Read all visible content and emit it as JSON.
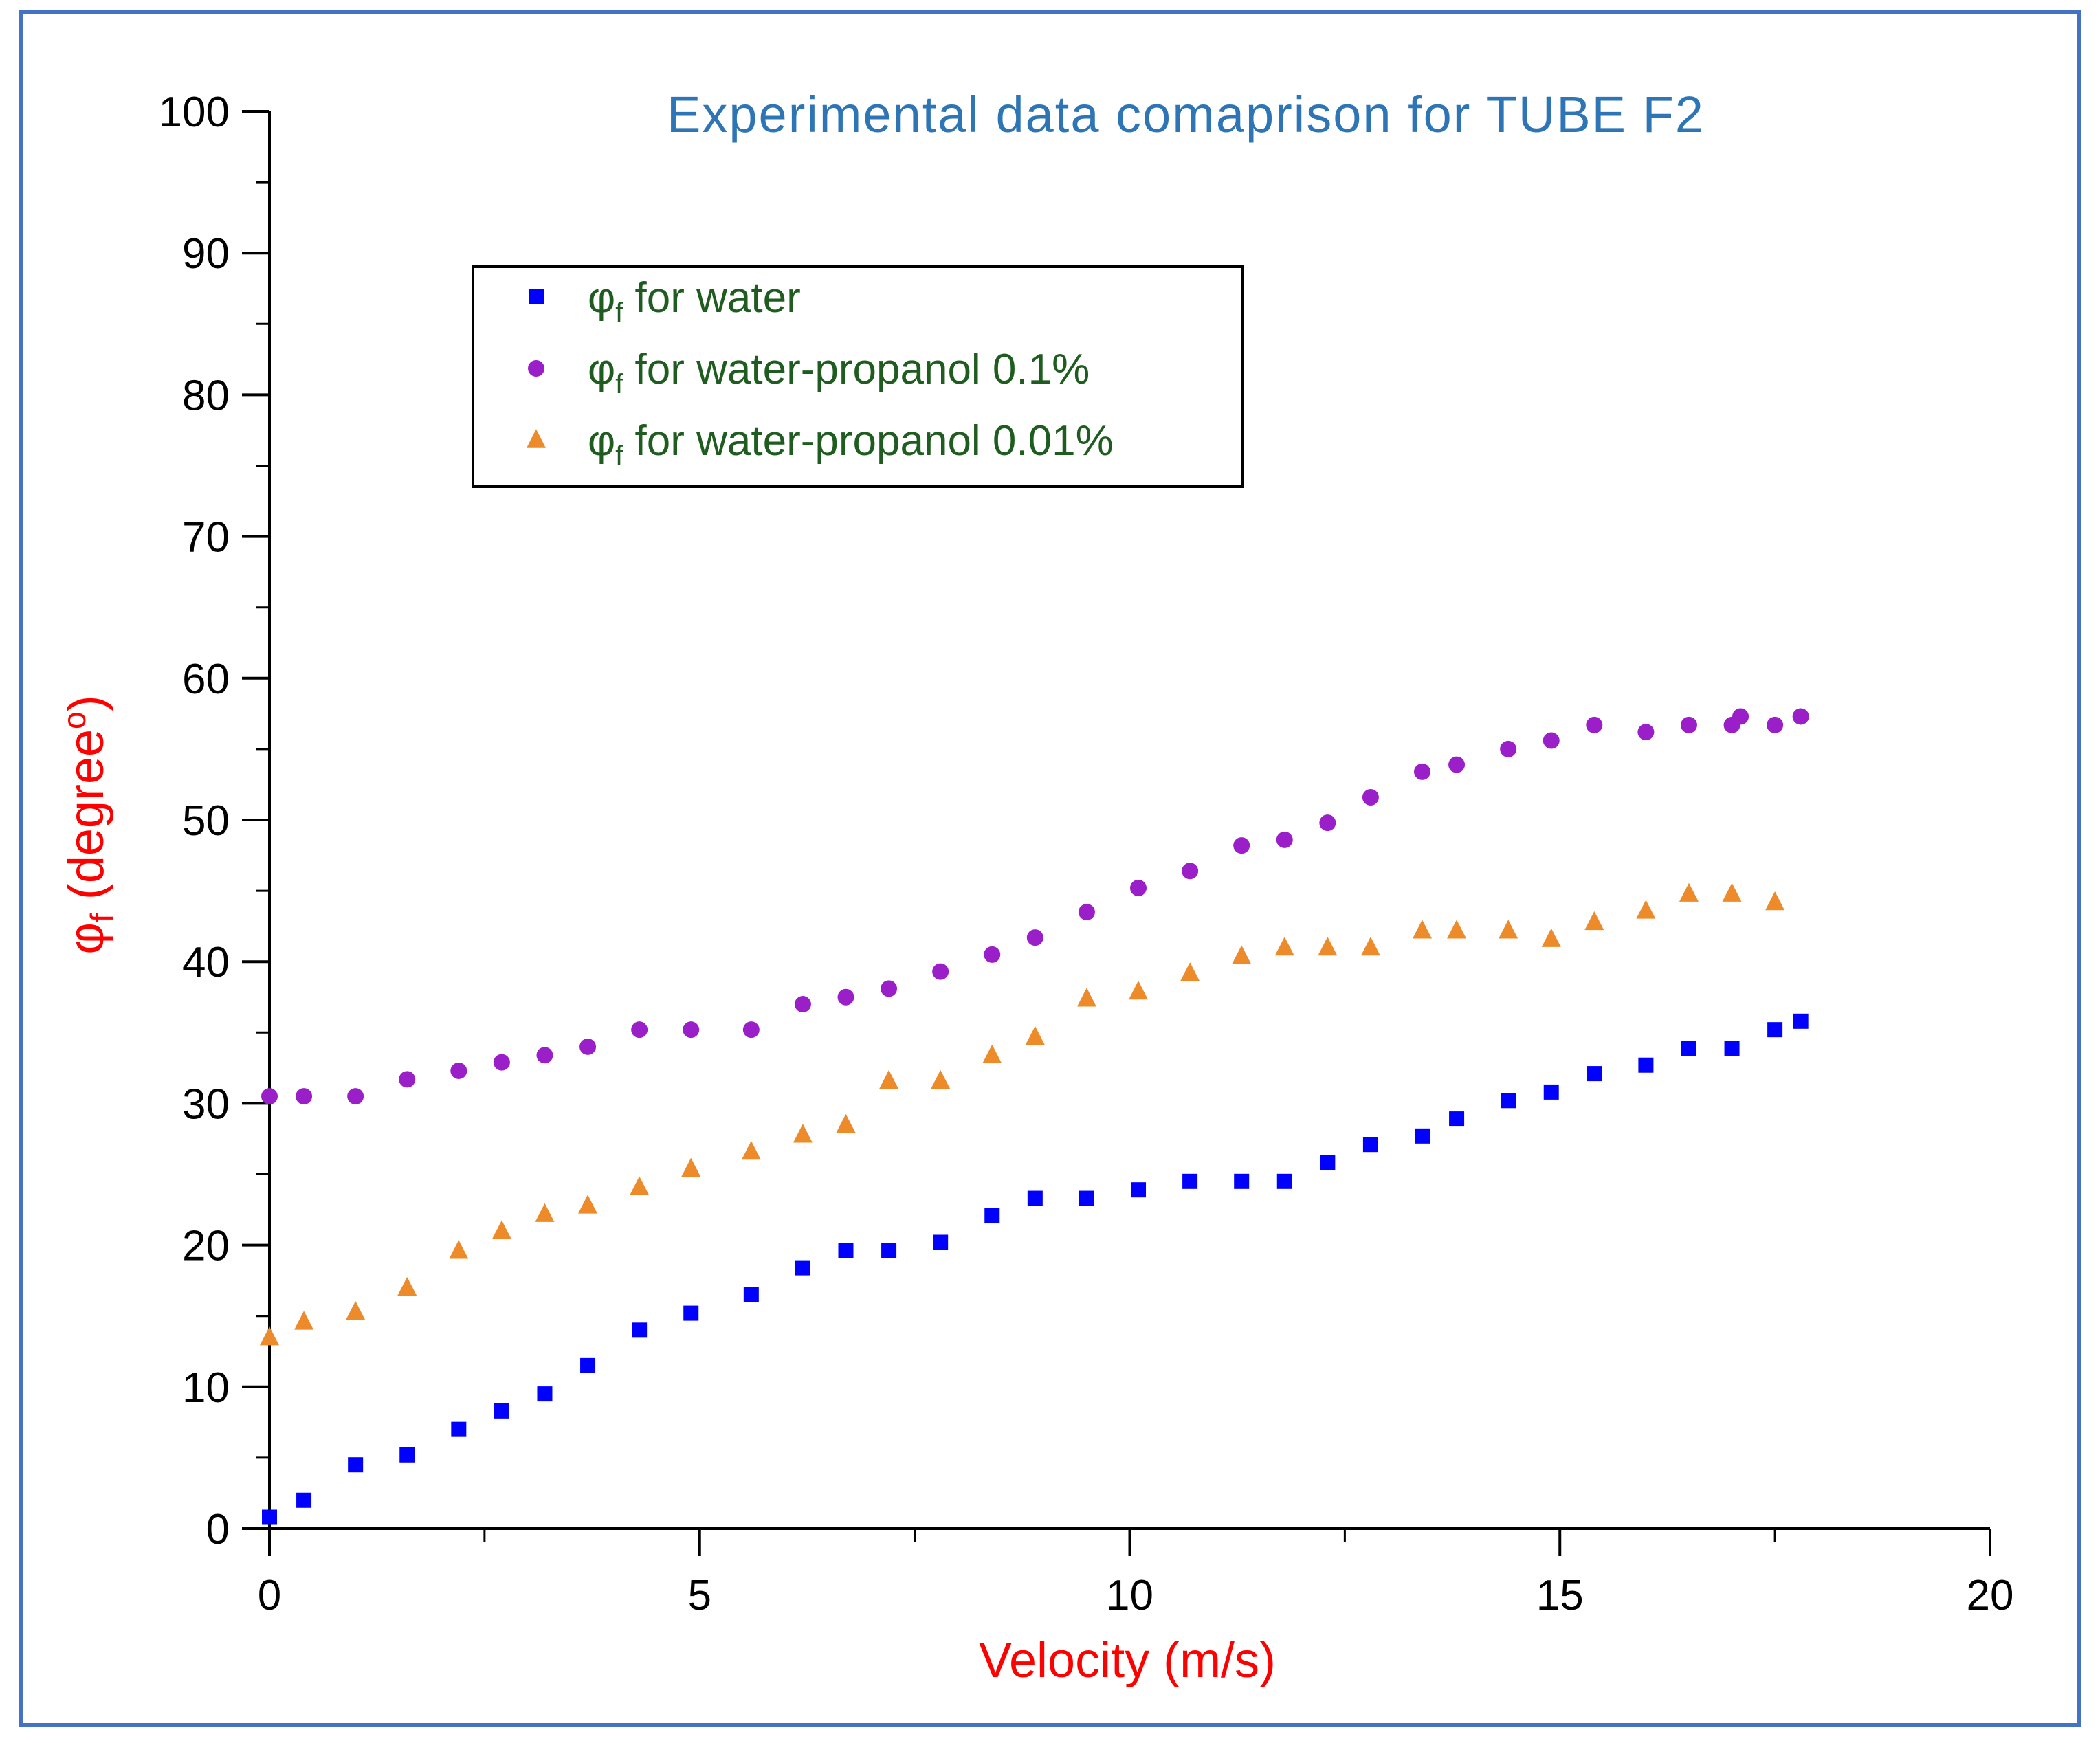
{
  "colors": {
    "frame": "#4472c4",
    "title": "#2e75b6",
    "axis_title": "#ff0000",
    "legend_text": "#1f5c1f",
    "axis": "#000000"
  },
  "chart_data": {
    "type": "scatter",
    "title": "Experimental data comaprison for TUBE F2",
    "xlabel": "Velocity (m/s)",
    "ylabel": {
      "symbol": "φ",
      "subscript": "f",
      "rest": " (degree",
      "superscript": "o",
      "close": ")"
    },
    "xlim": [
      0,
      20
    ],
    "ylim": [
      0,
      100
    ],
    "x_ticks": [
      0,
      5,
      10,
      15,
      20
    ],
    "y_ticks": [
      0,
      10,
      20,
      30,
      40,
      50,
      60,
      70,
      80,
      90,
      100
    ],
    "x_tick_labels": [
      "0",
      "5",
      "10",
      "15",
      "20"
    ],
    "y_tick_labels": [
      "0",
      "10",
      "20",
      "30",
      "40",
      "50",
      "60",
      "70",
      "80",
      "90",
      "100"
    ],
    "grid": false,
    "legend_position": "upper-left",
    "series": [
      {
        "name": "φf for water",
        "legend": {
          "symbol": "φ",
          "subscript": "f",
          "rest": " for water"
        },
        "marker": "square",
        "color": "#0000ff",
        "x": [
          0,
          0.4,
          1.0,
          1.6,
          2.2,
          2.7,
          3.2,
          3.7,
          4.3,
          4.9,
          5.6,
          6.2,
          6.7,
          7.2,
          7.8,
          8.4,
          8.9,
          9.5,
          10.1,
          10.7,
          11.3,
          11.8,
          12.3,
          12.8,
          13.4,
          13.8,
          14.4,
          14.9,
          15.4,
          16.0,
          16.5,
          17.0,
          17.5,
          17.8
        ],
        "y": [
          0.8,
          2.0,
          4.5,
          5.2,
          7.0,
          8.3,
          9.5,
          11.5,
          14.0,
          15.2,
          16.5,
          18.4,
          19.6,
          19.6,
          20.2,
          22.1,
          23.3,
          23.3,
          23.9,
          24.5,
          24.5,
          24.5,
          25.8,
          27.1,
          27.7,
          28.9,
          30.2,
          30.8,
          32.1,
          32.7,
          33.9,
          33.9,
          35.2,
          35.8
        ]
      },
      {
        "name": "φf for water-propanol 0.1%",
        "legend": {
          "symbol": "φ",
          "subscript": "f",
          "rest": " for water-propanol 0.1%"
        },
        "marker": "circle",
        "color": "#9b1fc9",
        "x": [
          0,
          0.4,
          1.0,
          1.6,
          2.2,
          2.7,
          3.2,
          3.7,
          4.3,
          4.9,
          5.6,
          6.2,
          6.7,
          7.2,
          7.8,
          8.4,
          8.9,
          9.5,
          10.1,
          10.7,
          11.3,
          11.8,
          12.3,
          12.8,
          13.4,
          13.8,
          14.4,
          14.9,
          15.4,
          16.0,
          16.5,
          17.0,
          17.1,
          17.5,
          17.8
        ],
        "y": [
          30.5,
          30.5,
          30.5,
          31.7,
          32.3,
          32.9,
          33.4,
          34.0,
          35.2,
          35.2,
          35.2,
          37.0,
          37.5,
          38.1,
          39.3,
          40.5,
          41.7,
          43.5,
          45.2,
          46.4,
          48.2,
          48.6,
          49.8,
          51.6,
          53.4,
          53.9,
          55.0,
          55.6,
          56.7,
          56.2,
          56.7,
          56.7,
          57.3,
          56.7,
          57.3
        ]
      },
      {
        "name": "φf for water-propanol 0.01%",
        "legend": {
          "symbol": "φ",
          "subscript": "f",
          "rest": " for water-propanol 0.01%"
        },
        "marker": "triangle",
        "color": "#ed8b2a",
        "x": [
          0,
          0.4,
          1.0,
          1.6,
          2.2,
          2.7,
          3.2,
          3.7,
          4.3,
          4.9,
          5.6,
          6.2,
          6.7,
          7.2,
          7.8,
          8.4,
          8.9,
          9.5,
          10.1,
          10.7,
          11.3,
          11.8,
          12.3,
          12.8,
          13.4,
          13.8,
          14.4,
          14.9,
          15.4,
          16.0,
          16.5,
          17.0,
          17.5
        ],
        "y": [
          13.5,
          14.6,
          15.3,
          17.0,
          19.6,
          21.0,
          22.2,
          22.8,
          24.1,
          25.4,
          26.6,
          27.8,
          28.5,
          31.6,
          31.6,
          33.4,
          34.7,
          37.4,
          37.9,
          39.2,
          40.4,
          41.0,
          41.0,
          41.0,
          42.2,
          42.2,
          42.2,
          41.6,
          42.8,
          43.6,
          44.8,
          44.8,
          44.2
        ]
      }
    ]
  }
}
